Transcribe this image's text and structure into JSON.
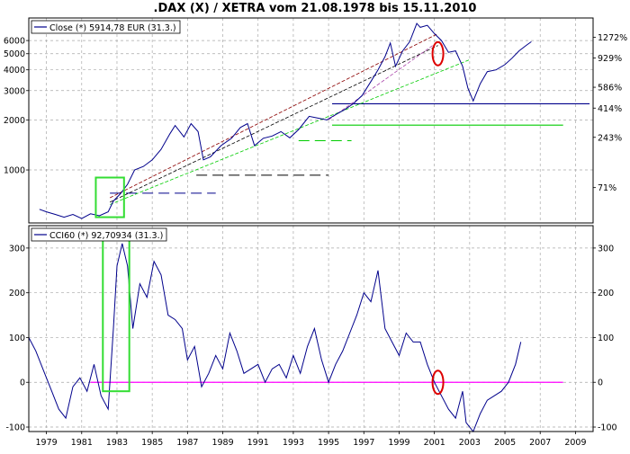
{
  "chart_data": [
    {
      "type": "line",
      "title": ".DAX (X) / XETRA vom 21.08.1978 bis 15.11.2010",
      "legend": {
        "label": "Close (*) 5914,78 EUR (31.3.)",
        "placement": "top-left"
      },
      "y_scale": "log",
      "ylim": [
        480,
        8200
      ],
      "xlim": [
        1978.0,
        2010.0
      ],
      "grid": true,
      "y_ticks_left": [
        "6000",
        "5000",
        "4000",
        "3000",
        "2000",
        "1000"
      ],
      "y_ticks_right": [
        "1272%",
        "929%",
        "586%",
        "414%",
        "243%",
        "71%"
      ],
      "series": [
        {
          "color": "#00008b",
          "x": [
            1978.6,
            1979.0,
            1979.5,
            1980.0,
            1980.5,
            1981.0,
            1981.5,
            1982.0,
            1982.5,
            1982.8,
            1983.2,
            1983.6,
            1984.0,
            1984.5,
            1985.0,
            1985.5,
            1986.0,
            1986.3,
            1986.8,
            1987.2,
            1987.6,
            1987.9,
            1988.3,
            1988.9,
            1989.5,
            1990.0,
            1990.4,
            1990.8,
            1991.3,
            1991.8,
            1992.3,
            1992.8,
            1993.3,
            1993.9,
            1994.4,
            1994.9,
            1995.4,
            1995.9,
            1996.4,
            1996.9,
            1997.4,
            1997.8,
            1998.2,
            1998.5,
            1998.8,
            1999.2,
            1999.6,
            2000.0,
            2000.2,
            2000.6,
            2001.0,
            2001.4,
            2001.8,
            2002.2,
            2002.6,
            2002.9,
            2003.2,
            2003.6,
            2004.0,
            2004.5,
            2005.0,
            2005.4,
            2005.8,
            2006.2,
            2006.5
          ],
          "y": [
            580,
            560,
            540,
            520,
            540,
            510,
            545,
            530,
            560,
            650,
            720,
            820,
            1000,
            1050,
            1150,
            1330,
            1650,
            1850,
            1580,
            1900,
            1700,
            1150,
            1200,
            1400,
            1550,
            1800,
            1900,
            1400,
            1550,
            1600,
            1700,
            1560,
            1750,
            2100,
            2050,
            2000,
            2150,
            2300,
            2500,
            2800,
            3400,
            4000,
            4800,
            5800,
            4200,
            5200,
            5900,
            7600,
            7200,
            7400,
            6600,
            6000,
            5100,
            5200,
            4200,
            3100,
            2600,
            3300,
            3900,
            4000,
            4300,
            4700,
            5200,
            5600,
            5900
          ]
        }
      ],
      "annotations": {
        "horizontal_levels": [
          {
            "color": "#00008b",
            "dashed": true,
            "x_from": 1982.6,
            "x_to": 1988.6,
            "y": 725
          },
          {
            "color": "#000000",
            "dashed": true,
            "x_from": 1987.5,
            "x_to": 1995.0,
            "y": 930
          },
          {
            "color": "#00cc00",
            "dashed": true,
            "x_from": 1993.3,
            "x_to": 1996.3,
            "y": 1500
          },
          {
            "color": "#00008b",
            "dashed": false,
            "x_from": 1995.2,
            "x_to": 2009.8,
            "y": 2500
          },
          {
            "color": "#00cc00",
            "dashed": false,
            "x_from": 1995.2,
            "x_to": 2008.3,
            "y": 1860
          }
        ],
        "trend_lines": [
          {
            "color": "#000000",
            "from": [
              1982.6,
              640
            ],
            "to": [
              2001.2,
              5600
            ]
          },
          {
            "color": "#00cc00",
            "from": [
              1982.6,
              620
            ],
            "to": [
              2003.0,
              4600
            ]
          },
          {
            "color": "#8b0000",
            "from": [
              1982.6,
              680
            ],
            "to": [
              2001.2,
              6600
            ]
          },
          {
            "color": "#aa44aa",
            "from": [
              1995.0,
              2000
            ],
            "to": [
              2001.2,
              5900
            ]
          }
        ],
        "highlight_boxes": [
          {
            "color": "#33dd33",
            "x_from": 1981.8,
            "x_to": 1983.4,
            "y_from": 520,
            "y_to": 900
          }
        ],
        "highlight_ellipses": [
          {
            "color": "#dd0000",
            "x": 2001.2,
            "y": 5000
          }
        ]
      }
    },
    {
      "type": "line",
      "legend": {
        "label": "CCI60 (*) 92,70934 (31.3.)",
        "placement": "top-left"
      },
      "ylim": [
        -110,
        350
      ],
      "xlim": [
        1978.0,
        2010.0
      ],
      "grid": true,
      "y_ticks": [
        "300",
        "200",
        "100",
        "0",
        "-100"
      ],
      "x_ticks": [
        "1979",
        "1981",
        "1983",
        "1985",
        "1987",
        "1989",
        "1991",
        "1993",
        "1995",
        "1997",
        "1999",
        "2001",
        "2003",
        "2005",
        "2007",
        "2009"
      ],
      "series": [
        {
          "color": "#00008b",
          "x": [
            1978.0,
            1978.4,
            1978.9,
            1979.3,
            1979.7,
            1980.1,
            1980.5,
            1980.9,
            1981.3,
            1981.7,
            1982.1,
            1982.5,
            1982.8,
            1983.0,
            1983.3,
            1983.6,
            1983.9,
            1984.3,
            1984.7,
            1985.1,
            1985.5,
            1985.9,
            1986.3,
            1986.7,
            1987.0,
            1987.4,
            1987.8,
            1988.2,
            1988.6,
            1989.0,
            1989.4,
            1989.8,
            1990.2,
            1990.6,
            1991.0,
            1991.4,
            1991.8,
            1992.2,
            1992.6,
            1993.0,
            1993.4,
            1993.8,
            1994.2,
            1994.6,
            1995.0,
            1995.4,
            1995.8,
            1996.2,
            1996.6,
            1997.0,
            1997.4,
            1997.8,
            1998.2,
            1998.6,
            1999.0,
            1999.4,
            1999.8,
            2000.2,
            2000.6,
            2001.0,
            2001.4,
            2001.8,
            2002.2,
            2002.6,
            2002.8,
            2003.2,
            2003.6,
            2004.0,
            2004.4,
            2004.8,
            2005.2,
            2005.6,
            2005.9
          ],
          "y": [
            100,
            70,
            20,
            -20,
            -60,
            -80,
            -10,
            10,
            -20,
            40,
            -30,
            -60,
            120,
            260,
            310,
            260,
            120,
            220,
            190,
            270,
            240,
            150,
            140,
            120,
            50,
            80,
            -10,
            20,
            60,
            30,
            110,
            70,
            20,
            30,
            40,
            0,
            30,
            40,
            10,
            60,
            20,
            80,
            120,
            50,
            0,
            40,
            70,
            110,
            150,
            200,
            180,
            250,
            120,
            90,
            60,
            110,
            90,
            90,
            40,
            0,
            -30,
            -60,
            -80,
            -20,
            -90,
            -110,
            -70,
            -40,
            -30,
            -20,
            0,
            40,
            90
          ]
        }
      ],
      "annotations": {
        "horizontal_levels": [
          {
            "color": "#ff00ff",
            "dashed": false,
            "x_from": 1981.5,
            "x_to": 2008.3,
            "y": 0
          }
        ],
        "highlight_boxes": [
          {
            "color": "#33dd33",
            "x_from": 1982.2,
            "x_to": 1983.7,
            "y_from": -20,
            "y_to": 320
          }
        ],
        "highlight_ellipses": [
          {
            "color": "#dd0000",
            "x": 2001.2,
            "y": 0
          }
        ]
      }
    }
  ]
}
